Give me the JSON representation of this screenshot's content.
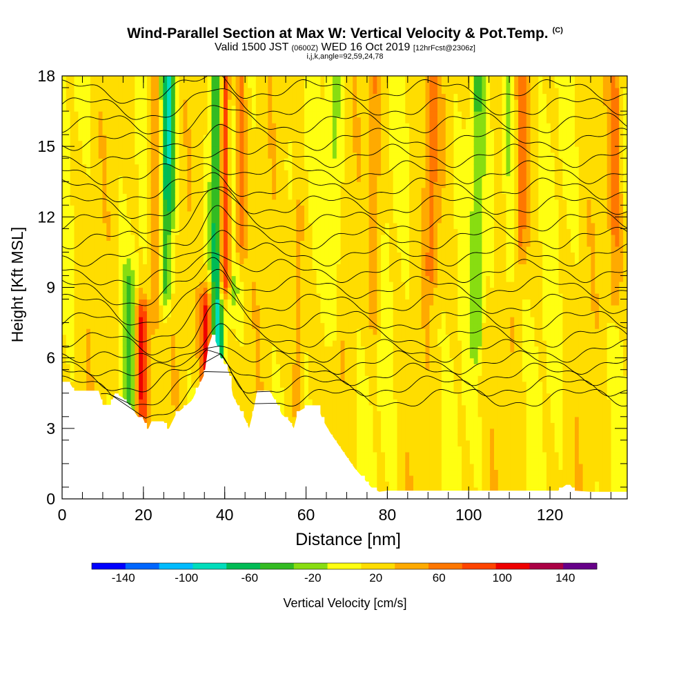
{
  "title": {
    "main": "Wind-Parallel Section at Max W: Vertical Velocity & Pot.Temp.",
    "copyright": "(C)",
    "valid_prefix": "Valid 1500 JST",
    "valid_utc": "(0600Z)",
    "valid_date": "WED 16 Oct 2019",
    "forecast": "[12hrFcst@2306z]",
    "indices": "i,j,k,angle=92,59,24,78"
  },
  "chart_data": {
    "type": "heatmap",
    "xlabel": "Distance [nm]",
    "ylabel": "Height [Kft MSL]",
    "xlim": [
      0,
      139
    ],
    "ylim": [
      0,
      18
    ],
    "x_ticks": [
      0,
      20,
      40,
      60,
      80,
      100,
      120
    ],
    "y_ticks": [
      0,
      3,
      6,
      9,
      12,
      15,
      18
    ],
    "colorbar": {
      "label": "Vertical Velocity [cm/s]",
      "range": [
        -160,
        160
      ],
      "step": 20,
      "tick_labels": [
        "-140",
        "-100",
        "-60",
        "-20",
        "20",
        "60",
        "100",
        "140"
      ],
      "tick_values": [
        -140,
        -100,
        -60,
        -20,
        20,
        60,
        100,
        140
      ],
      "colors": [
        "#0000ff",
        "#0066ff",
        "#00bbff",
        "#00ddbb",
        "#00bb55",
        "#33bb22",
        "#88dd11",
        "#ffff11",
        "#ffdd00",
        "#ffaa00",
        "#ff7700",
        "#ff4400",
        "#ee0000",
        "#aa0044",
        "#660088"
      ]
    },
    "terrain_kft": [
      [
        0,
        4.9
      ],
      [
        2,
        4.9
      ],
      [
        3,
        4.6
      ],
      [
        9,
        4.6
      ],
      [
        10,
        4.0
      ],
      [
        12,
        4.0
      ],
      [
        13,
        4.5
      ],
      [
        15,
        4.3
      ],
      [
        17,
        3.9
      ],
      [
        19,
        3.4
      ],
      [
        20,
        3.4
      ],
      [
        21,
        2.9
      ],
      [
        22,
        3.3
      ],
      [
        25,
        3.3
      ],
      [
        26,
        2.9
      ],
      [
        28,
        3.6
      ],
      [
        30,
        3.9
      ],
      [
        32,
        4.2
      ],
      [
        35,
        5.3
      ],
      [
        36,
        6.5
      ],
      [
        37,
        7.0
      ],
      [
        38,
        6.6
      ],
      [
        39,
        6.0
      ],
      [
        40,
        5.7
      ],
      [
        41,
        5.4
      ],
      [
        42,
        4.4
      ],
      [
        44,
        3.7
      ],
      [
        45,
        3.4
      ],
      [
        46,
        3.0
      ],
      [
        47,
        3.7
      ],
      [
        48,
        4.6
      ],
      [
        51,
        4.6
      ],
      [
        53,
        4.0
      ],
      [
        54,
        3.6
      ],
      [
        56,
        3.3
      ],
      [
        57,
        3.0
      ],
      [
        58,
        3.7
      ],
      [
        60,
        3.9
      ],
      [
        63,
        3.9
      ],
      [
        64,
        3.4
      ],
      [
        66,
        2.8
      ],
      [
        68,
        2.3
      ],
      [
        70,
        1.8
      ],
      [
        72,
        1.3
      ],
      [
        74,
        0.9
      ],
      [
        76,
        0.5
      ],
      [
        78,
        0.3
      ],
      [
        80,
        0.35
      ],
      [
        82,
        0.35
      ],
      [
        122,
        0.35
      ],
      [
        124,
        0.6
      ],
      [
        125,
        0.6
      ],
      [
        126,
        0.35
      ],
      [
        130,
        0.3
      ],
      [
        139,
        0.3
      ]
    ],
    "updrafts": [
      {
        "x": 19.5,
        "z0": 4.0,
        "z1": 7.5,
        "w": 85
      },
      {
        "x": 23.0,
        "z0": 8.0,
        "z1": 18,
        "w": 40
      },
      {
        "x": 35.5,
        "z0": 5.5,
        "z1": 8.0,
        "w": 90
      },
      {
        "x": 40.0,
        "z0": 9.5,
        "z1": 18,
        "w": 110
      },
      {
        "x": 43.5,
        "z0": 11.0,
        "z1": 18,
        "w": 55
      },
      {
        "x": 58.0,
        "z0": 4.0,
        "z1": 12.0,
        "w": 35
      },
      {
        "x": 77.0,
        "z0": 8.0,
        "z1": 18,
        "w": 35
      },
      {
        "x": 91.0,
        "z0": 10.0,
        "z1": 18,
        "w": 40
      },
      {
        "x": 113.0,
        "z0": 11.0,
        "z1": 18,
        "w": 40
      },
      {
        "x": 136.0,
        "z0": 9.0,
        "z1": 18,
        "w": 35
      }
    ],
    "downdrafts": [
      {
        "x": 25.5,
        "z0": 9.0,
        "z1": 18,
        "w": -65
      },
      {
        "x": 27.0,
        "z0": 13.0,
        "z1": 18,
        "w": -40
      },
      {
        "x": 38.2,
        "z0": 6.0,
        "z1": 18,
        "w": -90
      },
      {
        "x": 41.8,
        "z0": 9.0,
        "z1": 18,
        "w": -40
      },
      {
        "x": 16.5,
        "z0": 4.0,
        "z1": 9.0,
        "w": -40
      },
      {
        "x": 67.0,
        "z0": 8.0,
        "z1": 18,
        "w": -30
      },
      {
        "x": 102.0,
        "z0": 7.0,
        "z1": 18,
        "w": -35
      },
      {
        "x": 110.0,
        "z0": 10.0,
        "z1": 18,
        "w": -35
      }
    ],
    "isentropes_kft": [
      4.3,
      4.8,
      5.3,
      5.8,
      6.3,
      6.9,
      7.6,
      8.3,
      9.0,
      9.7,
      10.4,
      11.1,
      11.8,
      12.5,
      13.2,
      13.9,
      14.6,
      15.3,
      16.0,
      16.7,
      17.4
    ]
  }
}
